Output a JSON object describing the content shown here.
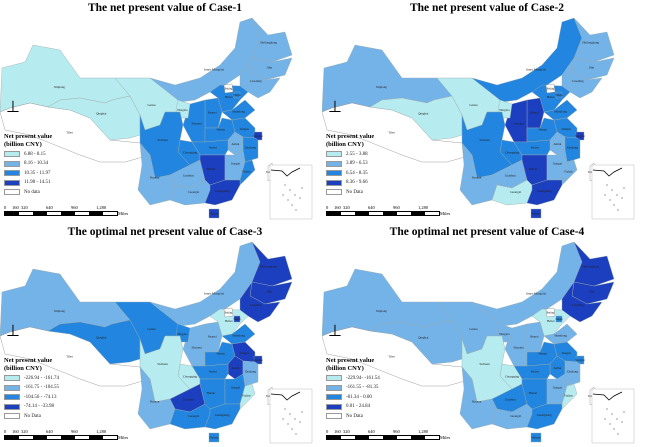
{
  "legend_title_line1": "Net present value",
  "legend_title_line2": "(billion CNY)",
  "scale_labels": [
    "0",
    "160",
    "320",
    "640",
    "960",
    "1,280"
  ],
  "scale_unit": "Miles",
  "north_arrow_icon": "north-arrow-icon",
  "class_colors": [
    "#b6ecef",
    "#74b3e8",
    "#2285df",
    "#1c3fbf"
  ],
  "no_data_color": "#ffffff",
  "province_names": {
    "Xinjiang": "Xinjiang",
    "Tibet": "Tibet",
    "Qinghai": "Qinghai",
    "Gansu": "Gansu",
    "InnerMongolia": "Inner Mongolia",
    "Heilongjiang": "Heilongjiang",
    "Jilin": "Jilin",
    "Liaoning": "Liaoning",
    "Beijing": "Beijing",
    "Tianjin": "Tianjin",
    "Hebei": "Hebei",
    "Shanxi": "Shanxi",
    "Shaanxi": "Shaanxi",
    "Ningxia": "Ningxia",
    "Shandong": "Shandong",
    "Henan": "Henan",
    "Jiangsu": "Jiangsu",
    "Shanghai": "Shanghai",
    "Anhui": "Anhui",
    "Zhejiang": "Zhejiang",
    "Hubei": "Hubei",
    "Chongqing": "Chongqing",
    "Sichuan": "Sichuan",
    "Guizhou": "Guizhou",
    "Hunan": "Hunan",
    "Jiangxi": "Jiangxi",
    "Fujian": "Fujian",
    "Yunnan": "Yunnan",
    "Guangxi": "Guangxi",
    "Guangdong": "Guangdong",
    "Hainan": "Hainan",
    "Taiwan": "Taiwan"
  },
  "cases": [
    {
      "title": "The net present value of Case-1",
      "legend": [
        "6.88 - 8.15",
        "8.16 - 10.34",
        "10.35 - 11.97",
        "11.98 - 14.51"
      ],
      "no_data_label": "No data",
      "classes": {
        "Xinjiang": 0,
        "Tibet": -1,
        "Qinghai": 0,
        "Gansu": 0,
        "InnerMongolia": 1,
        "Heilongjiang": 1,
        "Jilin": 1,
        "Liaoning": 1,
        "Beijing": -1,
        "Tianjin": 2,
        "Hebei": 2,
        "Shanxi": 2,
        "Shaanxi": 2,
        "Ningxia": 0,
        "Shandong": 2,
        "Henan": 2,
        "Jiangsu": 2,
        "Shanghai": 3,
        "Anhui": 1,
        "Zhejiang": 2,
        "Hubei": 2,
        "Chongqing": 2,
        "Sichuan": 2,
        "Guizhou": 1,
        "Hunan": 3,
        "Jiangxi": 1,
        "Fujian": 2,
        "Yunnan": 1,
        "Guangxi": 1,
        "Guangdong": 3,
        "Hainan": 3,
        "Taiwan": -1
      }
    },
    {
      "title": "The net present value of Case-2",
      "legend": [
        "2.55 - 3.88",
        "3.89 - 6.53",
        "6.54 - 8.35",
        "8.36 - 9.66"
      ],
      "no_data_label": "No Data",
      "classes": {
        "Xinjiang": 1,
        "Tibet": -1,
        "Qinghai": 0,
        "Gansu": 0,
        "InnerMongolia": 2,
        "Heilongjiang": 1,
        "Jilin": 1,
        "Liaoning": 1,
        "Beijing": -1,
        "Tianjin": 2,
        "Hebei": 2,
        "Shanxi": 3,
        "Shaanxi": 3,
        "Ningxia": 0,
        "Shandong": 2,
        "Henan": 2,
        "Jiangsu": 2,
        "Shanghai": 3,
        "Anhui": 1,
        "Zhejiang": 2,
        "Hubei": 2,
        "Chongqing": 2,
        "Sichuan": 2,
        "Guizhou": 1,
        "Hunan": 3,
        "Jiangxi": 1,
        "Fujian": 1,
        "Yunnan": 1,
        "Guangxi": 0,
        "Guangdong": 3,
        "Hainan": 3,
        "Taiwan": -1
      }
    },
    {
      "title": "The optimal net present value of Case-3",
      "legend": [
        "-226.94 - -161.74",
        "-161.75 - -104.55",
        "-104.56 - -74.13",
        "-74.14 - -33.98"
      ],
      "no_data_label": "No Data",
      "classes": {
        "Xinjiang": 1,
        "Tibet": -1,
        "Qinghai": 2,
        "Gansu": 2,
        "InnerMongolia": 1,
        "Heilongjiang": 3,
        "Jilin": 3,
        "Liaoning": 3,
        "Beijing": -1,
        "Tianjin": 3,
        "Hebei": 0,
        "Shanxi": 1,
        "Shaanxi": 1,
        "Ningxia": 2,
        "Shandong": 2,
        "Henan": 2,
        "Jiangsu": 3,
        "Shanghai": 3,
        "Anhui": 3,
        "Zhejiang": 1,
        "Hubei": 2,
        "Chongqing": 0,
        "Sichuan": 0,
        "Guizhou": 3,
        "Hunan": 2,
        "Jiangxi": 2,
        "Fujian": 0,
        "Yunnan": 1,
        "Guangxi": 2,
        "Guangdong": 2,
        "Hainan": 2,
        "Taiwan": -1
      }
    },
    {
      "title": "The optimal net present value of Case-4",
      "legend": [
        "-229.94- -161.54",
        "-161.55 - -81.35",
        "-81.34 - 0.00",
        "0.01 - 24.84"
      ],
      "no_data_label": "No Data",
      "classes": {
        "Xinjiang": 1,
        "Tibet": -1,
        "Qinghai": 1,
        "Gansu": 1,
        "InnerMongolia": 1,
        "Heilongjiang": 3,
        "Jilin": 3,
        "Liaoning": 3,
        "Beijing": -1,
        "Tianjin": 2,
        "Hebei": 0,
        "Shanxi": 1,
        "Shaanxi": 1,
        "Ningxia": 1,
        "Shandong": 1,
        "Henan": 2,
        "Jiangsu": 2,
        "Shanghai": 2,
        "Anhui": 2,
        "Zhejiang": 1,
        "Hubei": 2,
        "Chongqing": 0,
        "Sichuan": 0,
        "Guizhou": 2,
        "Hunan": 2,
        "Jiangxi": 1,
        "Fujian": 0,
        "Yunnan": 1,
        "Guangxi": 1,
        "Guangdong": 2,
        "Hainan": 2,
        "Taiwan": -1
      }
    }
  ]
}
